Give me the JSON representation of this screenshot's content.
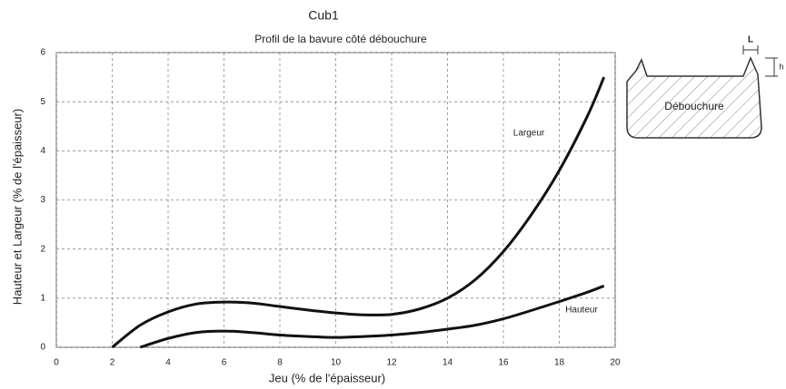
{
  "chart_data": {
    "type": "line",
    "title": "Cub1",
    "subtitle": "Profil de la bavure côté débouchure",
    "xlabel": "Jeu (% de l'épaisseur)",
    "ylabel": "Hauteur et Largeur (% de l'épaisseur)",
    "x": [
      2,
      3,
      4,
      5,
      6,
      7,
      8,
      9,
      10,
      11,
      12,
      13,
      14,
      15,
      16,
      17,
      18,
      19,
      19.6
    ],
    "series": [
      {
        "name": "Largeur",
        "color": "#111111",
        "values": [
          0,
          0.45,
          0.72,
          0.88,
          0.92,
          0.9,
          0.83,
          0.76,
          0.7,
          0.66,
          0.67,
          0.78,
          1.0,
          1.38,
          1.95,
          2.7,
          3.6,
          4.7,
          5.5
        ]
      },
      {
        "name": "Hauteur",
        "color": "#111111",
        "values": [
          null,
          0,
          0.18,
          0.3,
          0.33,
          0.3,
          0.25,
          0.22,
          0.2,
          0.22,
          0.25,
          0.3,
          0.37,
          0.45,
          0.58,
          0.75,
          0.93,
          1.12,
          1.25
        ]
      }
    ],
    "xlim": [
      0,
      20
    ],
    "xticks": [
      0,
      2,
      4,
      6,
      8,
      10,
      12,
      14,
      16,
      18,
      20
    ],
    "ylim": [
      0,
      6
    ],
    "yticks": [
      0,
      1,
      2,
      3,
      4,
      5,
      6
    ],
    "grid": true
  },
  "diagram": {
    "label": "Débouchure",
    "width_label": "L",
    "height_label": "h"
  }
}
